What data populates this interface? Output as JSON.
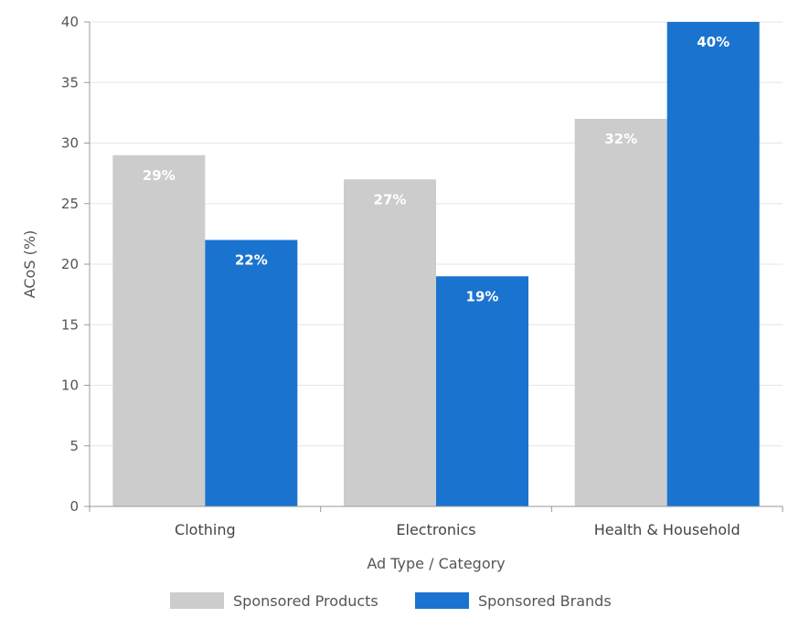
{
  "chart_data": {
    "type": "bar",
    "title": "",
    "xlabel": "Ad Type / Category",
    "ylabel": "ACoS (%)",
    "categories": [
      "Clothing",
      "Electronics",
      "Health & Household"
    ],
    "series": [
      {
        "name": "Sponsored Products",
        "color": "#cccccc",
        "values": [
          29,
          27,
          32
        ],
        "labels": [
          "29%",
          "27%",
          "32%"
        ]
      },
      {
        "name": "Sponsored Brands",
        "color": "#1a73cf",
        "values": [
          22,
          19,
          40
        ],
        "labels": [
          "22%",
          "19%",
          "40%"
        ]
      }
    ],
    "ylim": [
      0,
      40
    ],
    "yticks": [
      "0",
      "5",
      "10",
      "15",
      "20",
      "25",
      "30",
      "35",
      "40"
    ],
    "grid": true,
    "legend": "bottom-center"
  }
}
